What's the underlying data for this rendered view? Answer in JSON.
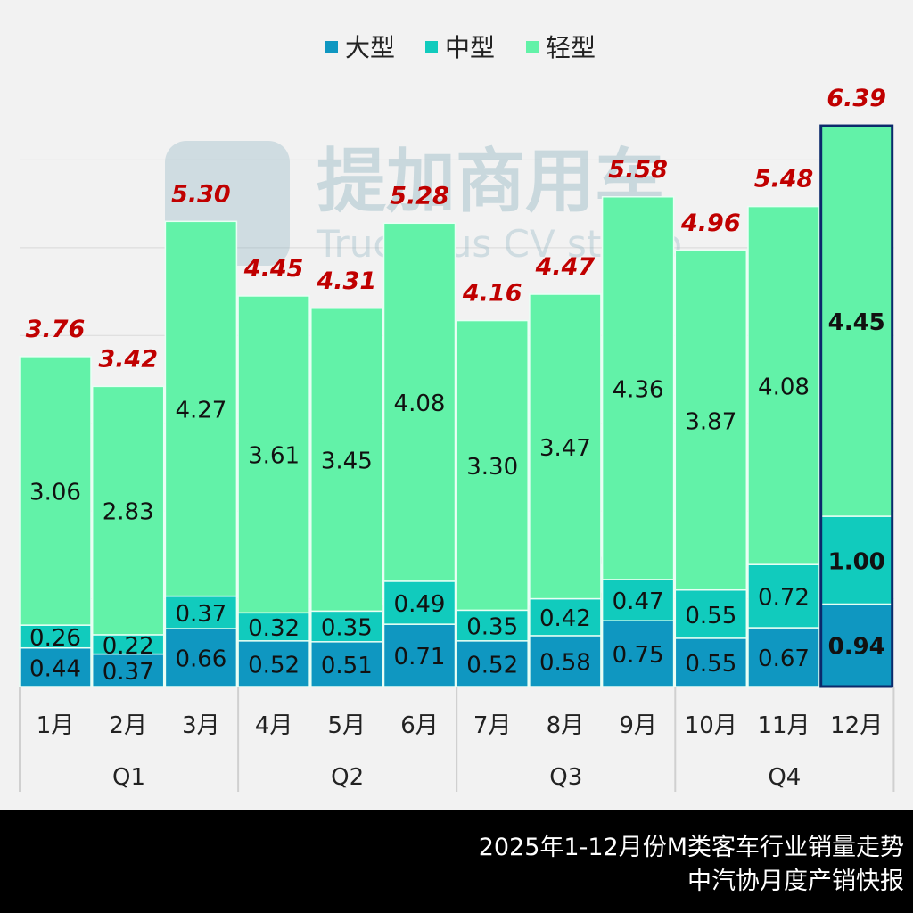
{
  "chart_data": {
    "type": "bar",
    "stacked": true,
    "title": "",
    "categories": [
      "1月",
      "2月",
      "3月",
      "4月",
      "5月",
      "6月",
      "7月",
      "8月",
      "9月",
      "10月",
      "11月",
      "12月"
    ],
    "groups": [
      {
        "label": "Q1",
        "span": 3
      },
      {
        "label": "Q2",
        "span": 3
      },
      {
        "label": "Q3",
        "span": 3
      },
      {
        "label": "Q4",
        "span": 3
      }
    ],
    "series": [
      {
        "name": "大型",
        "color": "#0f97c1",
        "values": [
          0.44,
          0.37,
          0.66,
          0.52,
          0.51,
          0.71,
          0.52,
          0.58,
          0.75,
          0.55,
          0.67,
          0.94
        ]
      },
      {
        "name": "中型",
        "color": "#11cbbd",
        "values": [
          0.26,
          0.22,
          0.37,
          0.32,
          0.35,
          0.49,
          0.35,
          0.42,
          0.47,
          0.55,
          0.72,
          1.0
        ]
      },
      {
        "name": "轻型",
        "color": "#62f2a8",
        "values": [
          3.06,
          2.83,
          4.27,
          3.61,
          3.45,
          4.08,
          3.3,
          3.47,
          4.36,
          3.87,
          4.08,
          4.45
        ]
      }
    ],
    "totals": [
      "3.76",
      "3.42",
      "5.30",
      "4.45",
      "4.31",
      "5.28",
      "4.16",
      "4.47",
      "5.58",
      "4.96",
      "5.48",
      "6.39"
    ],
    "total_label_color": "#c00000",
    "highlight_index": 11,
    "highlight_border_color": "#0b2a6b",
    "ylim": [
      0,
      7
    ],
    "grid": true,
    "legend_position": "top",
    "xlabel": "",
    "ylabel": ""
  },
  "watermark": {
    "cn": "提加商用车",
    "en": "TruckPlus CV studio"
  },
  "footer": {
    "line1": "2025年1-12月份M类客车行业销量走势",
    "line2": "中汽协月度产销快报"
  }
}
